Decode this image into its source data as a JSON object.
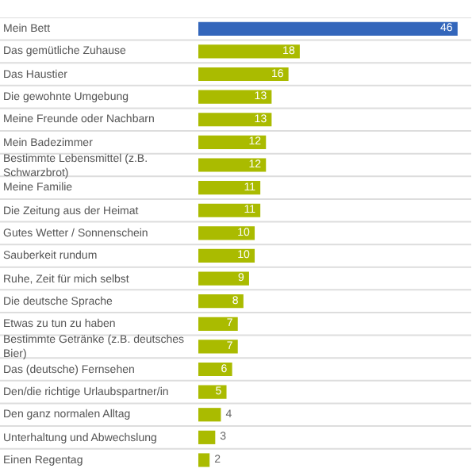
{
  "chart_data": {
    "type": "bar",
    "orientation": "horizontal",
    "data_labels": true,
    "legend": false,
    "categories": [
      "Mein Bett",
      "Das gemütliche Zuhause",
      "Das Haustier",
      "Die gewohnte Umgebung",
      "Meine Freunde oder Nachbarn",
      "Mein Badezimmer",
      "Bestimmte Lebensmittel (z.B. Schwarzbrot)",
      "Meine Familie",
      "Die Zeitung aus der Heimat",
      "Gutes Wetter / Sonnenschein",
      "Sauberkeit rundum",
      "Ruhe, Zeit für mich selbst",
      "Die deutsche Sprache",
      "Etwas zu tun zu haben",
      "Bestimmte Getränke (z.B. deutsches Bier)",
      "Das (deutsche) Fernsehen",
      "Den/die richtige Urlaubspartner/in",
      "Den ganz normalen Alltag",
      "Unterhaltung und Abwechslung",
      "Einen Regentag"
    ],
    "values": [
      46,
      18,
      16,
      13,
      13,
      12,
      12,
      11,
      11,
      10,
      10,
      9,
      8,
      7,
      7,
      6,
      5,
      4,
      3,
      2
    ],
    "colors": [
      "#3366bb",
      "#aabb00",
      "#aabb00",
      "#aabb00",
      "#aabb00",
      "#aabb00",
      "#aabb00",
      "#aabb00",
      "#aabb00",
      "#aabb00",
      "#aabb00",
      "#aabb00",
      "#aabb00",
      "#aabb00",
      "#aabb00",
      "#aabb00",
      "#aabb00",
      "#aabb00",
      "#aabb00",
      "#aabb00"
    ]
  }
}
